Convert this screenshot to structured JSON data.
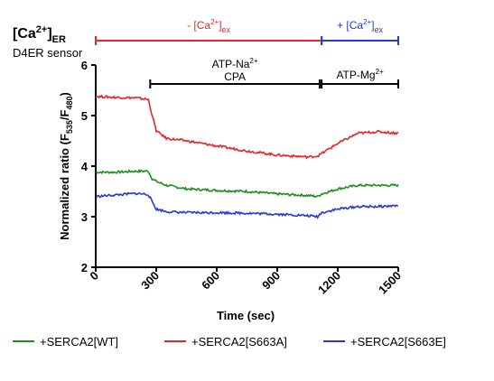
{
  "chart_data": {
    "type": "line",
    "title_main": "[Ca",
    "title_sup": "2+",
    "title_close": "]",
    "title_sub": "ER",
    "subtitle": "D4ER sensor",
    "xlabel": "Time (sec)",
    "ylabel_pre": "Normalized ratio (F",
    "ylabel_sub1": "535",
    "ylabel_mid": "/F",
    "ylabel_sub2": "480",
    "ylabel_post": ")",
    "xlim": [
      0,
      1500
    ],
    "ylim": [
      2,
      6
    ],
    "xticks": [
      "0",
      "300",
      "600",
      "900",
      "1200",
      "1500"
    ],
    "yticks": [
      "2",
      "3",
      "4",
      "5",
      "6"
    ],
    "grid": false,
    "legend_position": "bottom",
    "periods": [
      {
        "label_pre": "- [Ca",
        "label_sup": "2+",
        "label_post": "]",
        "label_sub": "ex",
        "start": 0,
        "end": 1120,
        "color": "#e8262a"
      },
      {
        "label_pre": "+ [Ca",
        "label_sup": "2+",
        "label_post": "]",
        "label_sub": "ex",
        "start": 1120,
        "end": 1500,
        "color": "#2b35d8"
      }
    ],
    "treatments": [
      {
        "line1_pre": "ATP-Na",
        "line1_sup": "2+",
        "line2": "CPA",
        "start": 270,
        "end": 1110
      },
      {
        "line1_pre": "ATP-Mg",
        "line1_sup": "2+",
        "line2": "",
        "start": 1120,
        "end": 1500
      }
    ],
    "series": [
      {
        "name": "+SERCA2[WT]",
        "color": "#1e8c1e",
        "x": [
          0,
          100,
          200,
          260,
          280,
          300,
          350,
          450,
          600,
          750,
          900,
          1050,
          1100,
          1120,
          1200,
          1300,
          1400,
          1500
        ],
        "y": [
          3.88,
          3.88,
          3.9,
          3.9,
          3.75,
          3.7,
          3.62,
          3.55,
          3.52,
          3.5,
          3.45,
          3.42,
          3.4,
          3.45,
          3.55,
          3.62,
          3.62,
          3.62
        ]
      },
      {
        "name": "+SERCA2[S663A]",
        "color": "#e8262a",
        "x": [
          0,
          100,
          200,
          260,
          280,
          300,
          350,
          450,
          600,
          750,
          900,
          1050,
          1100,
          1120,
          1200,
          1300,
          1400,
          1500
        ],
        "y": [
          5.38,
          5.36,
          5.35,
          5.32,
          5.0,
          4.7,
          4.55,
          4.5,
          4.4,
          4.3,
          4.22,
          4.18,
          4.2,
          4.25,
          4.45,
          4.65,
          4.68,
          4.65
        ]
      },
      {
        "name": "+SERCA2[S663E]",
        "color": "#2b35d8",
        "x": [
          0,
          100,
          200,
          260,
          280,
          300,
          350,
          450,
          600,
          750,
          900,
          1050,
          1100,
          1120,
          1200,
          1300,
          1400,
          1500
        ],
        "y": [
          3.4,
          3.43,
          3.46,
          3.44,
          3.3,
          3.15,
          3.1,
          3.08,
          3.08,
          3.07,
          3.05,
          3.02,
          3.0,
          3.08,
          3.15,
          3.2,
          3.2,
          3.22
        ]
      }
    ]
  }
}
